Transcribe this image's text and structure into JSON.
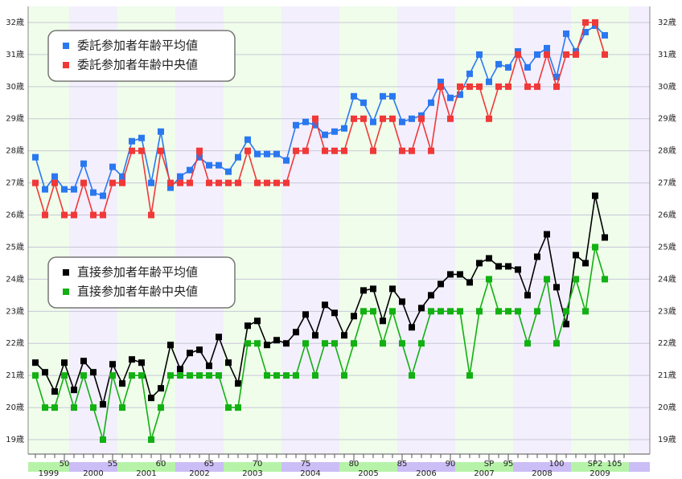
{
  "chart_data": {
    "type": "line",
    "categories": [
      null,
      null,
      null,
      "50",
      null,
      null,
      null,
      null,
      "55",
      null,
      null,
      null,
      null,
      "60",
      null,
      null,
      null,
      null,
      "65",
      null,
      null,
      null,
      null,
      "70",
      null,
      null,
      null,
      null,
      "75",
      null,
      null,
      null,
      null,
      "80",
      null,
      null,
      null,
      null,
      "85",
      null,
      null,
      null,
      null,
      "90",
      null,
      null,
      null,
      "SP",
      null,
      "95",
      null,
      null,
      null,
      null,
      "100",
      null,
      null,
      null,
      "SP2",
      null,
      "105",
      null
    ],
    "years": [
      {
        "label": "1999",
        "first": 0,
        "last": 3
      },
      {
        "label": "2000",
        "first": 4,
        "last": 8
      },
      {
        "label": "2001",
        "first": 9,
        "last": 14
      },
      {
        "label": "2002",
        "first": 15,
        "last": 19
      },
      {
        "label": "2003",
        "first": 20,
        "last": 25
      },
      {
        "label": "2004",
        "first": 26,
        "last": 31
      },
      {
        "label": "2005",
        "first": 32,
        "last": 37
      },
      {
        "label": "2006",
        "first": 38,
        "last": 43
      },
      {
        "label": "2007",
        "first": 44,
        "last": 49
      },
      {
        "label": "2008",
        "first": 50,
        "last": 55
      },
      {
        "label": "2009",
        "first": 56,
        "last": 61
      }
    ],
    "series": [
      {
        "name": "委託参加者年齢平均値",
        "color": "#2a78f0",
        "values": [
          27.8,
          26.8,
          27.2,
          26.8,
          26.8,
          27.6,
          26.7,
          26.6,
          27.5,
          27.2,
          28.3,
          28.4,
          27.0,
          28.6,
          26.85,
          27.2,
          27.4,
          27.8,
          27.55,
          27.55,
          27.35,
          27.8,
          28.35,
          27.9,
          27.9,
          27.9,
          27.7,
          28.8,
          28.9,
          28.8,
          28.5,
          28.6,
          28.7,
          29.7,
          29.5,
          28.9,
          29.7,
          29.7,
          28.9,
          29.0,
          29.1,
          29.5,
          30.15,
          29.65,
          29.75,
          30.4,
          31.0,
          30.15,
          30.7,
          30.6,
          31.1,
          30.6,
          31.0,
          31.2,
          30.3,
          31.65,
          31.1,
          31.7,
          31.9,
          31.6,
          null,
          null
        ]
      },
      {
        "name": "委託参加者年齢中央値",
        "color": "#f03838",
        "values": [
          27,
          26,
          27,
          26,
          26,
          27,
          26,
          26,
          27,
          27,
          28,
          28,
          26,
          28,
          27,
          27,
          27,
          28,
          27,
          27,
          27,
          27,
          28,
          27,
          27,
          27,
          27,
          28,
          28,
          29,
          28,
          28,
          28,
          29,
          29,
          28,
          29,
          29,
          28,
          28,
          29,
          28,
          30,
          29,
          30,
          30,
          30,
          29,
          30,
          30,
          31,
          30,
          30,
          31,
          30,
          31,
          31,
          32,
          32,
          31,
          null,
          null
        ]
      },
      {
        "name": "直接参加者年齢平均値",
        "color": "#000000",
        "values": [
          21.4,
          21.1,
          20.5,
          21.4,
          20.55,
          21.45,
          21.1,
          20.1,
          21.35,
          20.75,
          21.5,
          21.4,
          20.3,
          20.6,
          21.95,
          21.2,
          21.7,
          21.8,
          21.3,
          22.2,
          21.4,
          20.75,
          22.55,
          22.7,
          21.95,
          22.1,
          22.0,
          22.35,
          22.9,
          22.25,
          23.2,
          22.95,
          22.25,
          22.85,
          23.65,
          23.7,
          22.7,
          23.7,
          23.3,
          22.5,
          23.1,
          23.5,
          23.85,
          24.15,
          24.15,
          23.9,
          24.5,
          24.65,
          24.4,
          24.4,
          24.3,
          23.5,
          24.7,
          25.4,
          23.75,
          22.6,
          24.75,
          24.5,
          26.6,
          25.3,
          null,
          null
        ]
      },
      {
        "name": "直接参加者年齢中央値",
        "color": "#12b012",
        "values": [
          21,
          20,
          20,
          21,
          20,
          21,
          20,
          19,
          21,
          20,
          21,
          21,
          19,
          20,
          21,
          21,
          21,
          21,
          21,
          21,
          20,
          20,
          22,
          22,
          21,
          21,
          21,
          21,
          22,
          21,
          22,
          22,
          21,
          22,
          23,
          23,
          22,
          23,
          22,
          21,
          22,
          23,
          23,
          23,
          23,
          21,
          23,
          24,
          23,
          23,
          23,
          22,
          23,
          24,
          22,
          23,
          24,
          23,
          25,
          24,
          null,
          null
        ]
      }
    ],
    "ylim": [
      18.55,
      32.5
    ],
    "yticks": [
      {
        "value": 19,
        "label": "19歳"
      },
      {
        "value": 20,
        "label": "20歳"
      },
      {
        "value": 21,
        "label": "21歳"
      },
      {
        "value": 22,
        "label": "22歳"
      },
      {
        "value": 23,
        "label": "23歳"
      },
      {
        "value": 24,
        "label": "24歳"
      },
      {
        "value": 25,
        "label": "25歳"
      },
      {
        "value": 26,
        "label": "26歳"
      },
      {
        "value": 27,
        "label": "27歳"
      },
      {
        "value": 28,
        "label": "28歳"
      },
      {
        "value": 29,
        "label": "29歳"
      },
      {
        "value": 30,
        "label": "30歳"
      },
      {
        "value": 31,
        "label": "31歳"
      },
      {
        "value": 32,
        "label": "32歳"
      }
    ],
    "grid": true
  }
}
